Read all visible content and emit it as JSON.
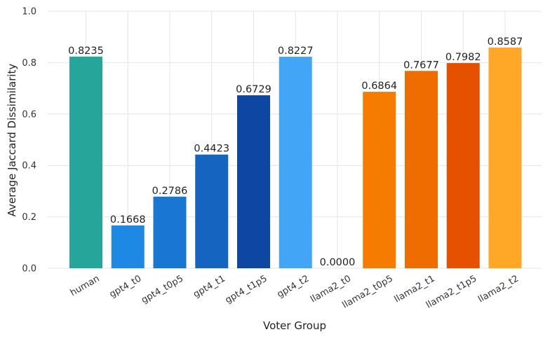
{
  "chart_data": {
    "type": "bar",
    "title": "",
    "xlabel": "Voter Group",
    "ylabel": "Average Jaccard Dissimilarity",
    "ylim": [
      0,
      1.0
    ],
    "yticks": [
      "0.0",
      "0.2",
      "0.4",
      "0.6",
      "0.8",
      "1.0"
    ],
    "grid": true,
    "categories": [
      "human",
      "gpt4_t0",
      "gpt4_t0p5",
      "gpt4_t1",
      "gpt4_t1p5",
      "gpt4_t2",
      "llama2_t0",
      "llama2_t0p5",
      "llama2_t1",
      "llama2_t1p5",
      "llama2_t2"
    ],
    "values": [
      0.8235,
      0.1668,
      0.2786,
      0.4423,
      0.6729,
      0.8227,
      0.0,
      0.6864,
      0.7677,
      0.7982,
      0.8587
    ],
    "value_labels": [
      "0.8235",
      "0.1668",
      "0.2786",
      "0.4423",
      "0.6729",
      "0.8227",
      "0.0000",
      "0.6864",
      "0.7677",
      "0.7982",
      "0.8587"
    ],
    "colors": [
      "#26a69a",
      "#1e88e5",
      "#1976d2",
      "#1565c0",
      "#0d47a1",
      "#42a5f5",
      "#fb8c00",
      "#f57c00",
      "#ef6c00",
      "#e65100",
      "#ffa726"
    ]
  }
}
